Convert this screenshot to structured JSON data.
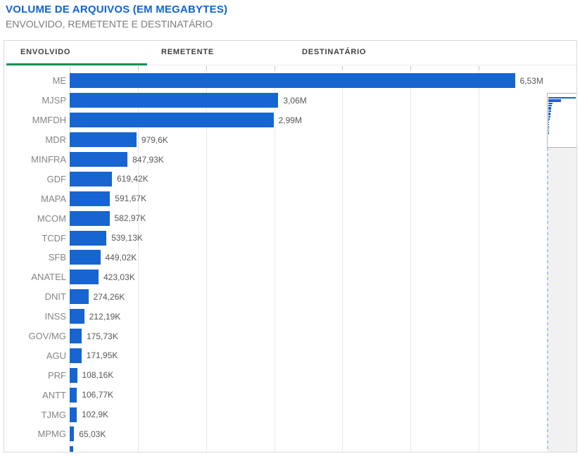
{
  "header": {
    "title": "VOLUME DE ARQUIVOS (EM MEGABYTES)",
    "subtitle": "ENVOLVIDO, REMETENTE E DESTINATÁRIO"
  },
  "tabs": {
    "items": [
      {
        "label": "ENVOLVIDO",
        "active": true
      },
      {
        "label": "REMETENTE",
        "active": false
      },
      {
        "label": "DESTINATÁRIO",
        "active": false
      }
    ]
  },
  "chart_data": {
    "type": "bar",
    "orientation": "horizontal",
    "title": "VOLUME DE ARQUIVOS (EM MEGABYTES)",
    "unit": "megabytes",
    "categories": [
      "ME",
      "MJSP",
      "MMFDH",
      "MDR",
      "MINFRA",
      "GDF",
      "MAPA",
      "MCOM",
      "TCDF",
      "SFB",
      "ANATEL",
      "DNIT",
      "INSS",
      "GOV/MG",
      "AGU",
      "PRF",
      "ANTT",
      "TJMG",
      "MPMG"
    ],
    "values": [
      6530000,
      3060000,
      2990000,
      979600,
      847930,
      619420,
      591670,
      582970,
      539130,
      449020,
      423030,
      274260,
      212190,
      175730,
      171950,
      108160,
      106770,
      102900,
      65030
    ],
    "value_labels": [
      "6,53M",
      "3,06M",
      "2,99M",
      "979,6K",
      "847,93K",
      "619,42K",
      "591,67K",
      "582,97K",
      "539,13K",
      "449,02K",
      "423,03K",
      "274,26K",
      "212,19K",
      "175,73K",
      "171,95K",
      "108,16K",
      "106,77K",
      "102,9K",
      "65,03K"
    ],
    "partial_next_value": 55000,
    "xlim": [
      0,
      7000000
    ],
    "grid_interval": 1000000,
    "gridlines": "vertical, light gray, no axis tick labels visible",
    "legend": "none",
    "scrollbar_minimap": true
  },
  "colors": {
    "bar": "#1765d1",
    "title": "#0d64d8",
    "tab_active_underline": "#0a9150",
    "widget_border": "#d9d9d9",
    "category_label": "#858585",
    "value_label": "#575757",
    "minimap_rest_bg": "#f1f1f1"
  }
}
